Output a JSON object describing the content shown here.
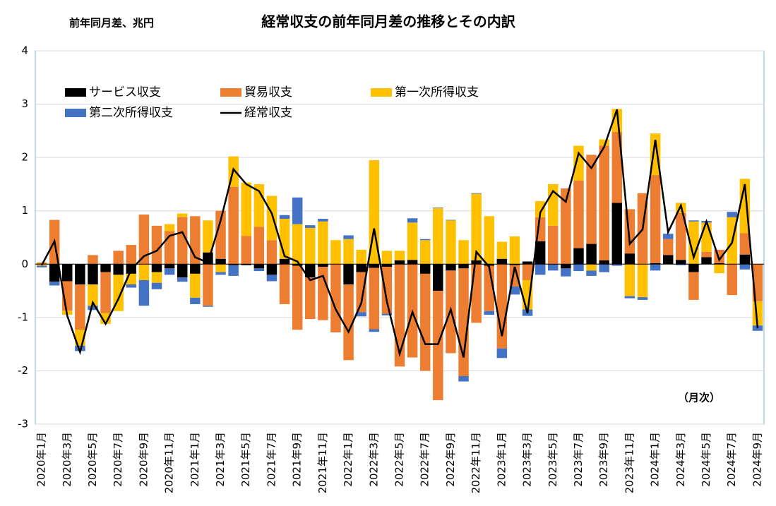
{
  "chart_data": {
    "type": "bar",
    "stacked": true,
    "title": "経常収支の前年同月差の推移とその内訳",
    "y_label": "前年同月差、兆円",
    "annotation": "（月次）",
    "categories": [
      "2020年1月",
      null,
      "2020年3月",
      null,
      "2020年5月",
      null,
      "2020年7月",
      null,
      "2020年9月",
      null,
      "2020年11月",
      null,
      "2021年1月",
      null,
      "2021年3月",
      null,
      "2021年5月",
      null,
      "2021年7月",
      null,
      "2021年9月",
      null,
      "2021年11月",
      null,
      "2022年1月",
      null,
      "2022年3月",
      null,
      "2022年5月",
      null,
      "2022年7月",
      null,
      "2022年9月",
      null,
      "2022年11月",
      null,
      "2023年1月",
      null,
      "2023年3月",
      null,
      "2023年5月",
      null,
      "2023年7月",
      null,
      "2023年9月",
      null,
      "2023年11月",
      null,
      "2024年1月",
      null,
      "2024年3月",
      null,
      "2024年5月",
      null,
      "2024年7月",
      null,
      "2024年9月"
    ],
    "series": [
      {
        "name": "サービス収支",
        "color": "#000000",
        "values": [
          0,
          -0.33,
          -0.32,
          -0.38,
          -0.38,
          -0.15,
          -0.2,
          -0.18,
          0,
          -0.15,
          -0.08,
          -0.25,
          -0.18,
          0.22,
          0.1,
          -0.02,
          -0.02,
          -0.08,
          -0.2,
          0.1,
          -0.03,
          -0.25,
          -0.05,
          0,
          -0.38,
          -0.15,
          -0.07,
          -0.05,
          0.07,
          0.08,
          -0.18,
          -0.5,
          -0.12,
          -0.08,
          0.07,
          -0.03,
          0.1,
          -0.02,
          0.05,
          0.43,
          0,
          -0.08,
          0.3,
          0.38,
          0.07,
          1.15,
          0.2,
          0,
          0.02,
          0.17,
          0.08,
          -0.15,
          0.13,
          0.02,
          0,
          0.18,
          0
        ]
      },
      {
        "name": "貿易収支",
        "color": "#ED7D31",
        "values": [
          0.03,
          0.83,
          -0.55,
          -0.85,
          0.17,
          -0.77,
          0.25,
          0.36,
          0.93,
          0.72,
          0.62,
          0.88,
          0.9,
          -0.78,
          0.9,
          1.45,
          0.53,
          0.7,
          0.45,
          -0.75,
          -1.2,
          -0.78,
          -1.0,
          -1.28,
          -1.42,
          -0.75,
          -1.15,
          -0.88,
          -1.92,
          -1.75,
          -1.82,
          -2.05,
          -1.55,
          -2.02,
          -1.1,
          -0.85,
          -1.58,
          -0.4,
          -0.3,
          0.45,
          0.72,
          1.42,
          1.27,
          1.67,
          2.15,
          1.33,
          0.83,
          1.33,
          1.65,
          0.3,
          0.88,
          -0.52,
          0.1,
          0.25,
          -0.58,
          0.4,
          -0.7
        ]
      },
      {
        "name": "第一次所得収支",
        "color": "#FFC000",
        "values": [
          -0.03,
          0,
          -0.08,
          -0.3,
          -0.4,
          -0.2,
          -0.68,
          -0.2,
          -0.3,
          -0.2,
          0.13,
          0.07,
          -0.45,
          0.6,
          -0.15,
          0.57,
          1.0,
          0.8,
          0.83,
          0.75,
          0.75,
          0.68,
          0.8,
          0.45,
          0.47,
          0.27,
          1.95,
          0.25,
          0.18,
          0.7,
          0.45,
          1.05,
          0.82,
          0.45,
          1.25,
          0.9,
          0.32,
          0.52,
          -0.55,
          0.3,
          0.78,
          0,
          0.65,
          -0.12,
          0.12,
          0.43,
          -0.6,
          -0.62,
          0.78,
          0,
          0.19,
          0.8,
          0.55,
          -0.17,
          0.88,
          1.02,
          -0.45
        ]
      },
      {
        "name": "第二次所得収支",
        "color": "#4472C4",
        "values": [
          -0.03,
          -0.07,
          0,
          -0.1,
          -0.08,
          0,
          0,
          -0.06,
          -0.48,
          -0.12,
          -0.12,
          -0.08,
          -0.12,
          -0.02,
          -0.05,
          -0.2,
          0,
          -0.05,
          -0.12,
          0.07,
          0.5,
          0.05,
          0.05,
          0,
          0.07,
          -0.08,
          -0.05,
          -0.03,
          0,
          0.08,
          0.02,
          0.01,
          0.01,
          -0.1,
          0.01,
          -0.07,
          -0.18,
          -0.15,
          -0.12,
          -0.2,
          -0.12,
          -0.15,
          -0.13,
          -0.1,
          -0.15,
          -0.03,
          -0.04,
          -0.05,
          -0.12,
          0.1,
          -0.02,
          0.02,
          0.03,
          0,
          0.1,
          -0.1,
          -0.1
        ]
      },
      {
        "name": "経常収支",
        "color": "#000000",
        "type": "line",
        "values": [
          -0.02,
          0.43,
          -0.97,
          -1.65,
          -0.72,
          -1.12,
          -0.65,
          -0.1,
          0.15,
          0.25,
          0.53,
          0.6,
          0.13,
          0.03,
          0.82,
          1.78,
          1.5,
          1.37,
          0.95,
          0.15,
          0.05,
          -0.3,
          -0.22,
          -0.85,
          -1.27,
          -0.73,
          0.67,
          -0.7,
          -1.68,
          -0.9,
          -1.5,
          -1.5,
          -0.85,
          -1.75,
          0.23,
          -0.05,
          -1.35,
          -0.05,
          -0.92,
          0.97,
          1.37,
          1.17,
          2.08,
          1.8,
          2.2,
          2.9,
          0.38,
          0.65,
          2.33,
          0.6,
          1.1,
          0.13,
          0.8,
          0.08,
          0.4,
          1.5,
          -1.2
        ]
      }
    ],
    "ylim": [
      -3,
      4
    ],
    "yticks": [
      -3,
      -2,
      -1,
      0,
      1,
      2,
      3,
      4
    ],
    "grid": true
  }
}
